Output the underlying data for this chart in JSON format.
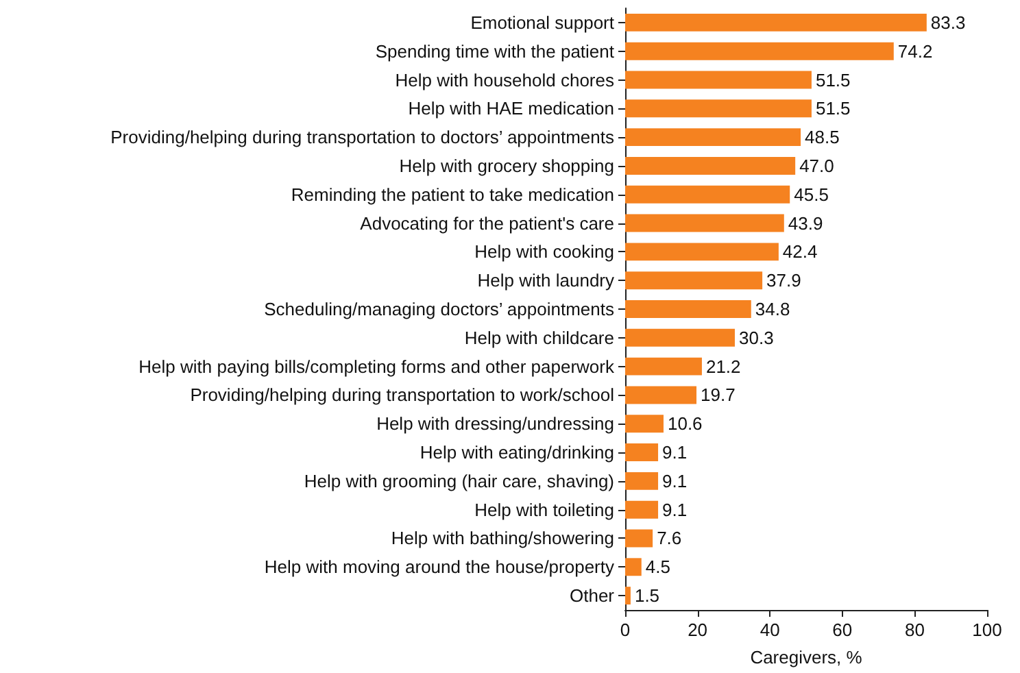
{
  "chart_data": {
    "type": "bar",
    "orientation": "horizontal",
    "xlabel": "Caregivers, %",
    "categories": [
      "Emotional support",
      "Spending time with the patient",
      "Help with household chores",
      "Help with HAE medication",
      "Providing/helping during transportation to doctors’ appointments",
      "Help with grocery shopping",
      "Reminding the patient to take medication",
      "Advocating for the patient's care",
      "Help with cooking",
      "Help with laundry",
      "Scheduling/managing doctors’ appointments",
      "Help with childcare",
      "Help with paying bills/completing forms and other paperwork",
      "Providing/helping during transportation to work/school",
      "Help with dressing/undressing",
      "Help with eating/drinking",
      "Help with grooming (hair care, shaving)",
      "Help with toileting",
      "Help with bathing/showering",
      "Help with moving around the house/property",
      "Other"
    ],
    "values": [
      83.3,
      74.2,
      51.5,
      51.5,
      48.5,
      47.0,
      45.5,
      43.9,
      42.4,
      37.9,
      34.8,
      30.3,
      21.2,
      19.7,
      10.6,
      9.1,
      9.1,
      9.1,
      7.6,
      4.5,
      1.5
    ],
    "value_labels": [
      "83.3",
      "74.2",
      "51.5",
      "51.5",
      "48.5",
      "47.0",
      "45.5",
      "43.9",
      "42.4",
      "37.9",
      "34.8",
      "30.3",
      "21.2",
      "19.7",
      "10.6",
      "9.1",
      "9.1",
      "9.1",
      "7.6",
      "4.5",
      "1.5"
    ],
    "color": "#f58220",
    "xlim": [
      0,
      100
    ],
    "xticks": [
      0,
      20,
      40,
      60,
      80,
      100
    ],
    "grid": false
  }
}
